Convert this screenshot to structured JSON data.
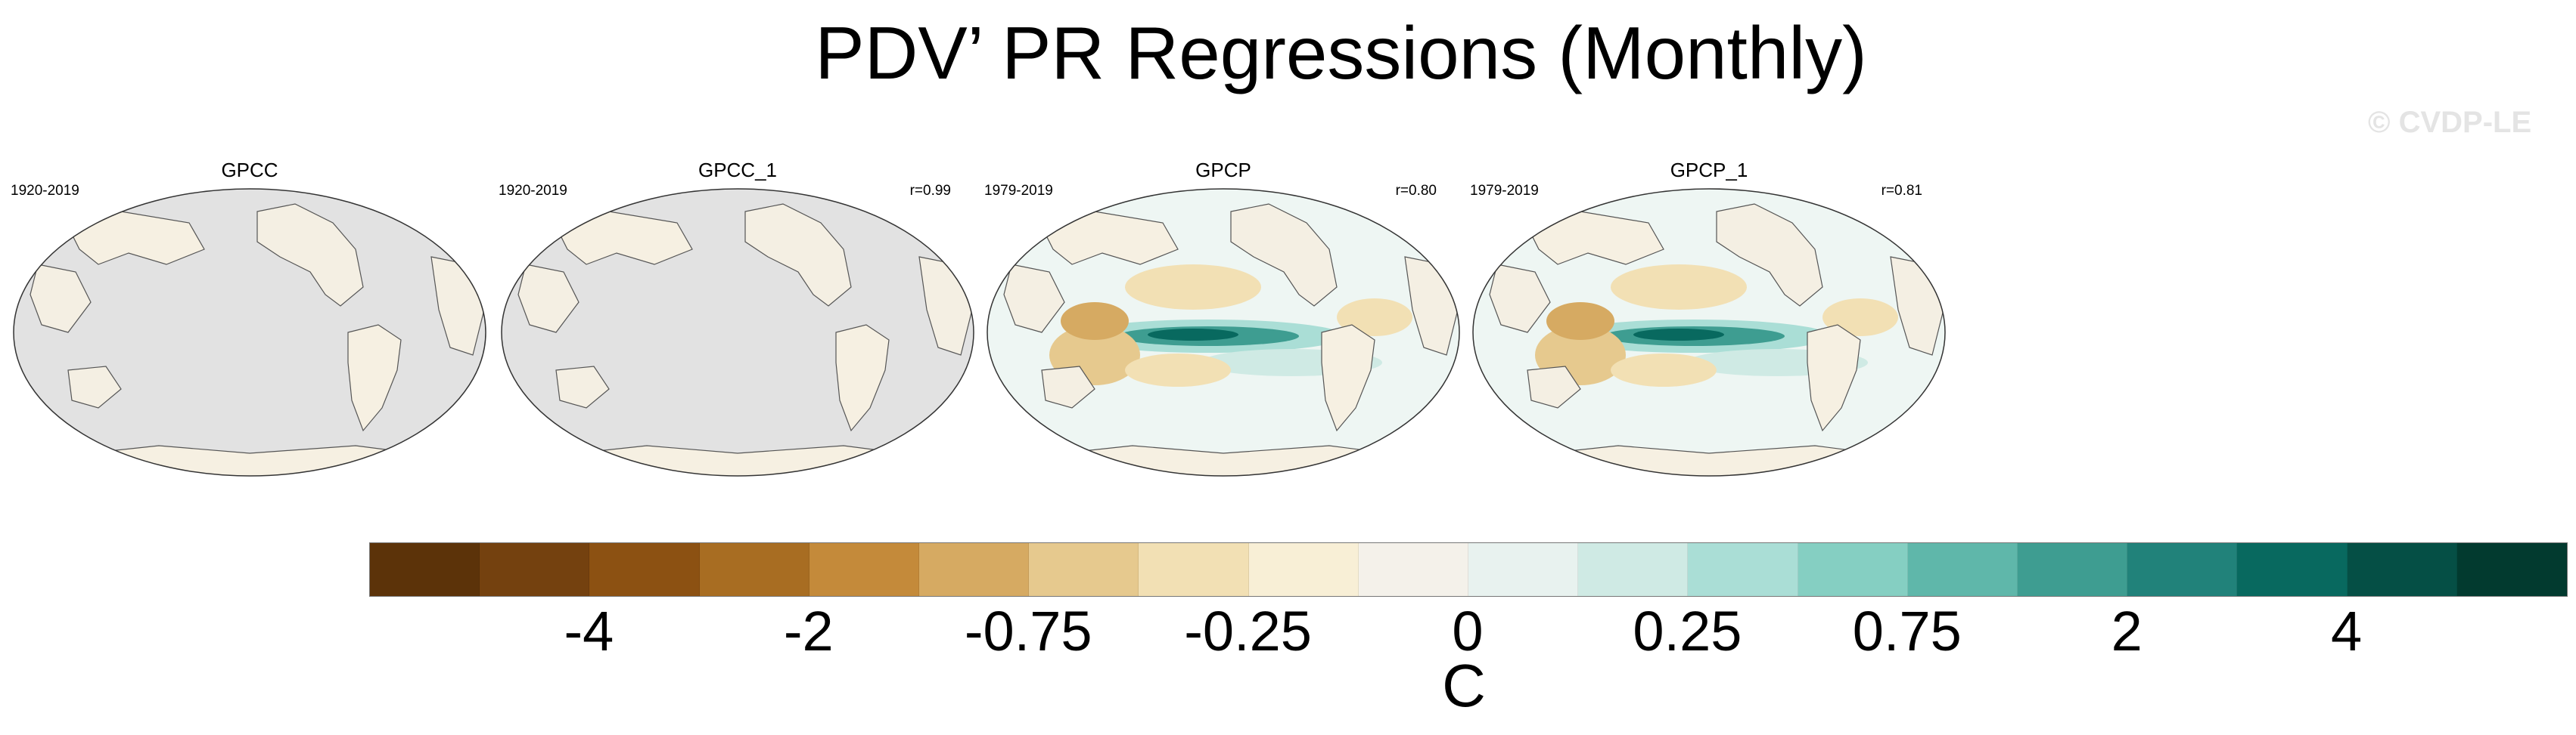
{
  "figure": {
    "title": "PDV’ PR Regressions (Monthly)",
    "watermark": "© CVDP-LE"
  },
  "panels": [
    {
      "name": "GPCC",
      "years": "1920-2019",
      "corr": "",
      "ocean_data": false
    },
    {
      "name": "GPCC_1",
      "years": "1920-2019",
      "corr": "r=0.99",
      "ocean_data": false
    },
    {
      "name": "GPCP",
      "years": "1979-2019",
      "corr": "r=0.80",
      "ocean_data": true
    },
    {
      "name": "GPCP_1",
      "years": "1979-2019",
      "corr": "r=0.81",
      "ocean_data": true
    }
  ],
  "colorbar": {
    "unit": "C",
    "colors": [
      "#5c3309",
      "#74410f",
      "#8c5112",
      "#a86d22",
      "#c48a3a",
      "#d6aa62",
      "#e6c98e",
      "#f2e0b4",
      "#f8efd6",
      "#f4f1ea",
      "#e8f2ef",
      "#cfeae4",
      "#aaded6",
      "#85cfc2",
      "#5fb7aa",
      "#3e9d91",
      "#21827a",
      "#08695f",
      "#054f45",
      "#023a2f"
    ],
    "tick_labels": [
      "-4",
      "-2",
      "-0.75",
      "-0.25",
      "0",
      "0.25",
      "0.75",
      "2",
      "4"
    ]
  },
  "chart_data": {
    "type": "heatmap",
    "title": "PDV’ PR Regressions (Monthly)",
    "subplots": [
      "GPCC",
      "GPCC_1",
      "GPCP",
      "GPCP_1"
    ],
    "colorbar_levels": [
      -4,
      -2,
      -0.75,
      -0.25,
      0,
      0.25,
      0.75,
      2,
      4
    ],
    "colorbar_unit": "C"
  }
}
